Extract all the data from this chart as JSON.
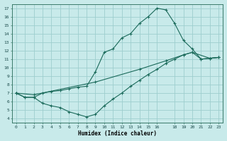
{
  "xlabel": "Humidex (Indice chaleur)",
  "bg_color": "#c8eaea",
  "grid_color": "#9ecece",
  "line_color": "#1a6a5a",
  "xlim": [
    -0.5,
    23.5
  ],
  "ylim": [
    3.5,
    17.5
  ],
  "xticks": [
    0,
    1,
    2,
    3,
    4,
    5,
    6,
    7,
    8,
    9,
    10,
    11,
    12,
    13,
    14,
    15,
    16,
    18,
    19,
    20,
    21,
    22,
    23
  ],
  "yticks": [
    4,
    5,
    6,
    7,
    8,
    9,
    10,
    11,
    12,
    13,
    14,
    15,
    16,
    17
  ],
  "line1_x": [
    0,
    1,
    2,
    3,
    4,
    5,
    6,
    7,
    8,
    9,
    10,
    11,
    12,
    13,
    14,
    15,
    16,
    17,
    18,
    19,
    20,
    21,
    22,
    23
  ],
  "line1_y": [
    7.0,
    6.5,
    6.5,
    7.0,
    7.2,
    7.3,
    7.5,
    7.7,
    7.8,
    9.5,
    11.8,
    12.2,
    13.5,
    14.0,
    15.2,
    16.0,
    17.0,
    16.8,
    15.2,
    13.2,
    12.2,
    11.0,
    11.1,
    11.2
  ],
  "line2_x": [
    0,
    2,
    9,
    14,
    17,
    19,
    20,
    22,
    23
  ],
  "line2_y": [
    7.0,
    6.8,
    8.3,
    9.8,
    10.8,
    11.5,
    11.8,
    11.1,
    11.2
  ],
  "line3_x": [
    0,
    1,
    2,
    3,
    4,
    5,
    6,
    7,
    8,
    9,
    10,
    11,
    12,
    13,
    14,
    15,
    16,
    17,
    18,
    19,
    20,
    21,
    22,
    23
  ],
  "line3_y": [
    7.0,
    6.5,
    6.5,
    5.8,
    5.5,
    5.3,
    4.8,
    4.5,
    4.2,
    4.5,
    5.5,
    6.3,
    7.0,
    7.8,
    8.5,
    9.2,
    9.8,
    10.5,
    11.0,
    11.5,
    11.8,
    11.0,
    11.1,
    11.2
  ]
}
